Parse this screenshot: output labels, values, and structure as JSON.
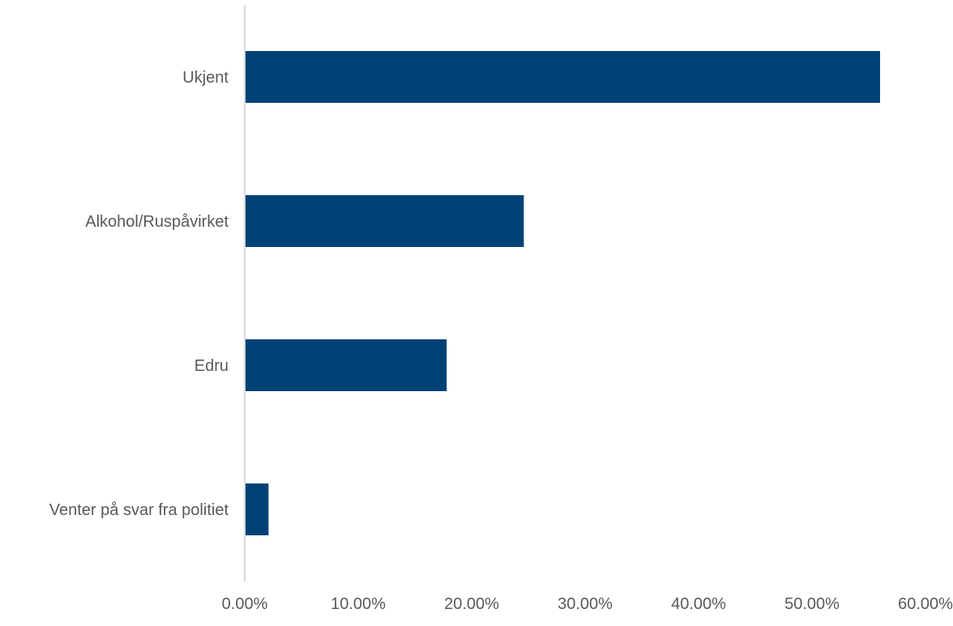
{
  "chart_data": {
    "type": "bar",
    "orientation": "horizontal",
    "categories": [
      "Ukjent",
      "Alkohol/Ruspåvirket",
      "Edru",
      "Venter på svar fra politiet"
    ],
    "values": [
      56.0,
      24.6,
      17.8,
      2.1
    ],
    "value_unit": "%",
    "xlim": [
      0,
      60
    ],
    "xticks": [
      0,
      10,
      20,
      30,
      40,
      50,
      60
    ],
    "xtick_labels": [
      "0.00%",
      "10.00%",
      "20.00%",
      "30.00%",
      "40.00%",
      "50.00%",
      "60.00%"
    ],
    "title": "",
    "xlabel": "",
    "ylabel": "",
    "grid": false,
    "legend": "none",
    "bar_color": "#004276",
    "axis_color": "#d9d9d9"
  }
}
